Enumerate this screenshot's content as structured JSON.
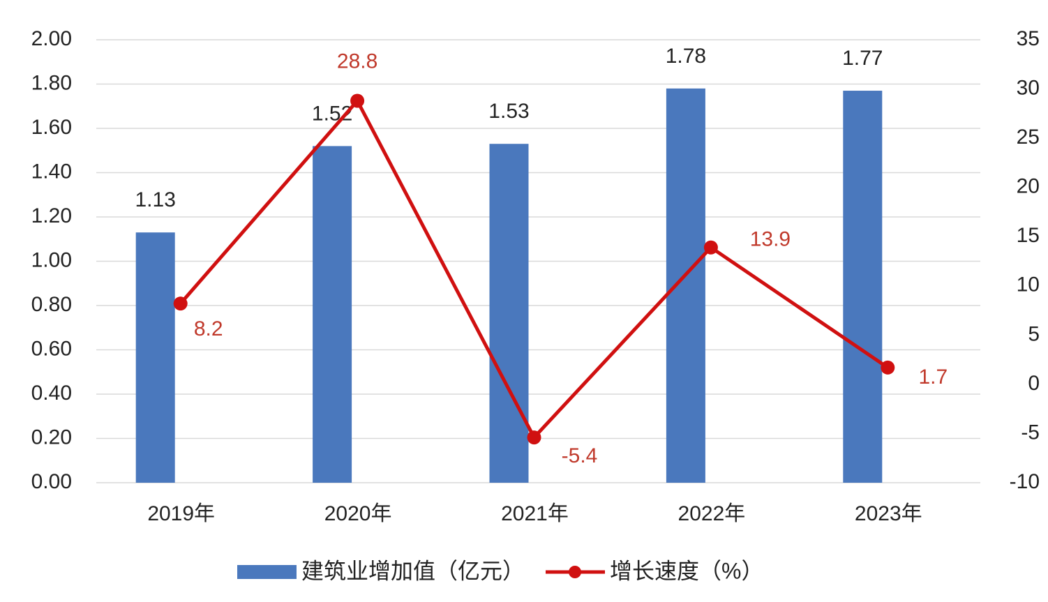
{
  "chart_data": {
    "type": "bar",
    "categories": [
      "2019年",
      "2020年",
      "2021年",
      "2022年",
      "2023年"
    ],
    "series": [
      {
        "name": "建筑业增加值（亿元）",
        "type": "bar",
        "color": "#4a78bd",
        "values": [
          1.13,
          1.52,
          1.53,
          1.78,
          1.77
        ]
      },
      {
        "name": "增长速度（%）",
        "type": "line",
        "axis": "y2",
        "color": "#d01010",
        "values": [
          8.2,
          28.8,
          -5.4,
          13.9,
          1.7
        ]
      }
    ],
    "ylim": [
      0,
      2
    ],
    "yticks": [
      {
        "value": 0,
        "label": "0.00"
      },
      {
        "value": 0.2,
        "label": "0.20"
      },
      {
        "value": 0.4,
        "label": "0.40"
      },
      {
        "value": 0.6,
        "label": "0.60"
      },
      {
        "value": 0.8,
        "label": "0.80"
      },
      {
        "value": 1,
        "label": "1.00"
      },
      {
        "value": 1.2,
        "label": "1.20"
      },
      {
        "value": 1.4,
        "label": "1.40"
      },
      {
        "value": 1.6,
        "label": "1.60"
      },
      {
        "value": 1.8,
        "label": "1.80"
      },
      {
        "value": 2,
        "label": "2.00"
      }
    ],
    "y2lim": [
      -10,
      35
    ],
    "y2ticks": [
      -10,
      -5,
      0,
      5,
      10,
      15,
      20,
      25,
      30,
      35
    ],
    "grid": true,
    "legend": "bottom"
  }
}
